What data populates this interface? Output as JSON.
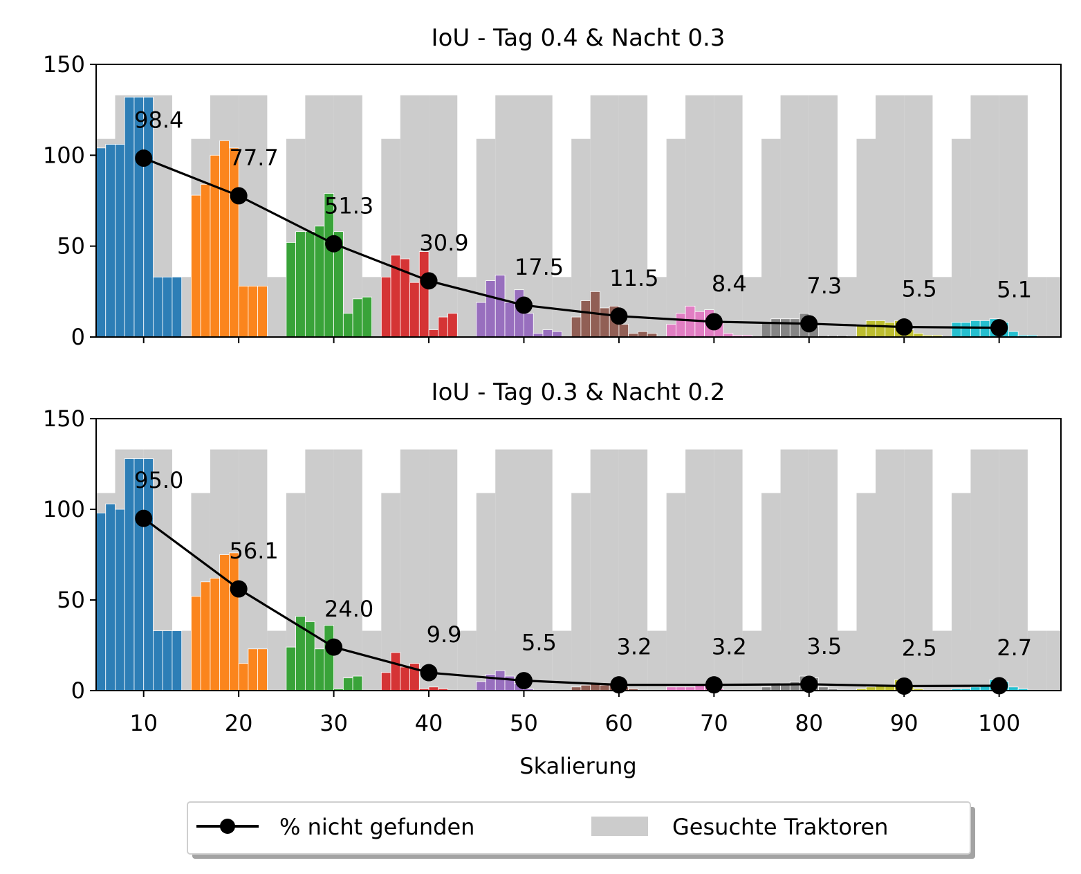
{
  "chart_data": {
    "type": "bar",
    "xlabel": "Skalierung",
    "x_ticks": [
      10,
      20,
      30,
      40,
      50,
      60,
      70,
      80,
      90,
      100
    ],
    "y_ticks": [
      0,
      50,
      100,
      150
    ],
    "xlim": [
      5,
      106.5
    ],
    "ylim": [
      0,
      150
    ],
    "bar_width": 1,
    "legend": {
      "placement": "bottom-center",
      "line_label": "% nicht gefunden",
      "bar_label": "Gesuchte Traktoren"
    },
    "colors": {
      "groups": [
        "#1f77b4",
        "#ff7f0e",
        "#2ca02c",
        "#d62728",
        "#9467bd",
        "#8c564b",
        "#e377c2",
        "#7f7f7f",
        "#bcbd22",
        "#17becf"
      ],
      "searched": "#cccccc",
      "line": "#000000"
    },
    "searched_counts": [
      109,
      133,
      133,
      33,
      33,
      33
    ],
    "panels": [
      {
        "title": "IoU - Tag 0.4 & Nacht 0.3",
        "line": [
          98.4,
          77.7,
          51.3,
          30.9,
          17.5,
          11.5,
          8.4,
          7.3,
          5.5,
          5.1
        ],
        "line_labels": [
          "98.4",
          "77.7",
          "51.3",
          "30.9",
          "17.5",
          "11.5",
          "8.4",
          "7.3",
          "5.5",
          "5.1"
        ],
        "found": [
          [
            104,
            106,
            106,
            132,
            132,
            132,
            33,
            33,
            33
          ],
          [
            78,
            84,
            100,
            108,
            104,
            28,
            28,
            28
          ],
          [
            52,
            58,
            58,
            61,
            79,
            58,
            13,
            21,
            22
          ],
          [
            33,
            45,
            43,
            30,
            47,
            4,
            11,
            13
          ],
          [
            19,
            31,
            34,
            19,
            26,
            13,
            2,
            4,
            3
          ],
          [
            11,
            20,
            25,
            16,
            17,
            7,
            2,
            3,
            2
          ],
          [
            7,
            13,
            17,
            14,
            15,
            8,
            2,
            1,
            1
          ],
          [
            8,
            10,
            10,
            10,
            13,
            6,
            1,
            1,
            1
          ],
          [
            7,
            9,
            9,
            8,
            9,
            4,
            2,
            1,
            1
          ],
          [
            8,
            8,
            9,
            9,
            10,
            8,
            3,
            1,
            1
          ]
        ]
      },
      {
        "title": "IoU - Tag 0.3 & Nacht 0.2",
        "line": [
          95.0,
          56.1,
          24.0,
          9.9,
          5.5,
          3.2,
          3.2,
          3.5,
          2.5,
          2.7
        ],
        "line_labels": [
          "95.0",
          "56.1",
          "24.0",
          "9.9",
          "5.5",
          "3.2",
          "3.2",
          "3.5",
          "2.5",
          "2.7"
        ],
        "found": [
          [
            98,
            103,
            100,
            128,
            128,
            128,
            33,
            33,
            33
          ],
          [
            52,
            60,
            62,
            75,
            76,
            15,
            23,
            23
          ],
          [
            24,
            41,
            38,
            23,
            36,
            1,
            7,
            8
          ],
          [
            10,
            21,
            13,
            15,
            1,
            2,
            1
          ],
          [
            5,
            9,
            11,
            8,
            4,
            1
          ],
          [
            2,
            3,
            4,
            3,
            3,
            2,
            1
          ],
          [
            2,
            2,
            2,
            3,
            3,
            1
          ],
          [
            2,
            3,
            4,
            5,
            8,
            7,
            2,
            1
          ],
          [
            1,
            2,
            3,
            3,
            6,
            3,
            1
          ],
          [
            1,
            1,
            2,
            3,
            6,
            5,
            2,
            1
          ]
        ]
      }
    ]
  }
}
